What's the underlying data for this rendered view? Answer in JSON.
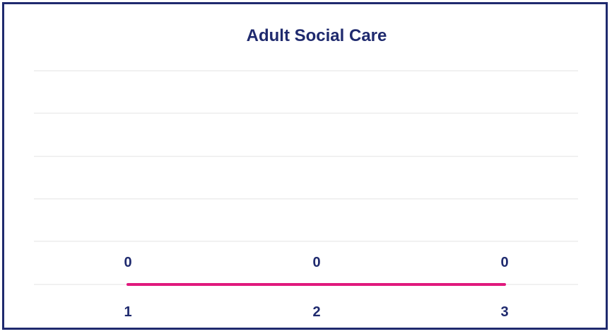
{
  "chart_data": {
    "type": "line",
    "title": "Adult Social Care",
    "categories": [
      "1",
      "2",
      "3"
    ],
    "series": [
      {
        "values": [
          0,
          0,
          0
        ],
        "color": "#e0197d"
      }
    ],
    "data_labels": [
      "0",
      "0",
      "0"
    ],
    "grid": true,
    "xlabel": "",
    "ylabel": "",
    "text_color": "#1f2a6e",
    "grid_color": "#e3e3e3"
  }
}
